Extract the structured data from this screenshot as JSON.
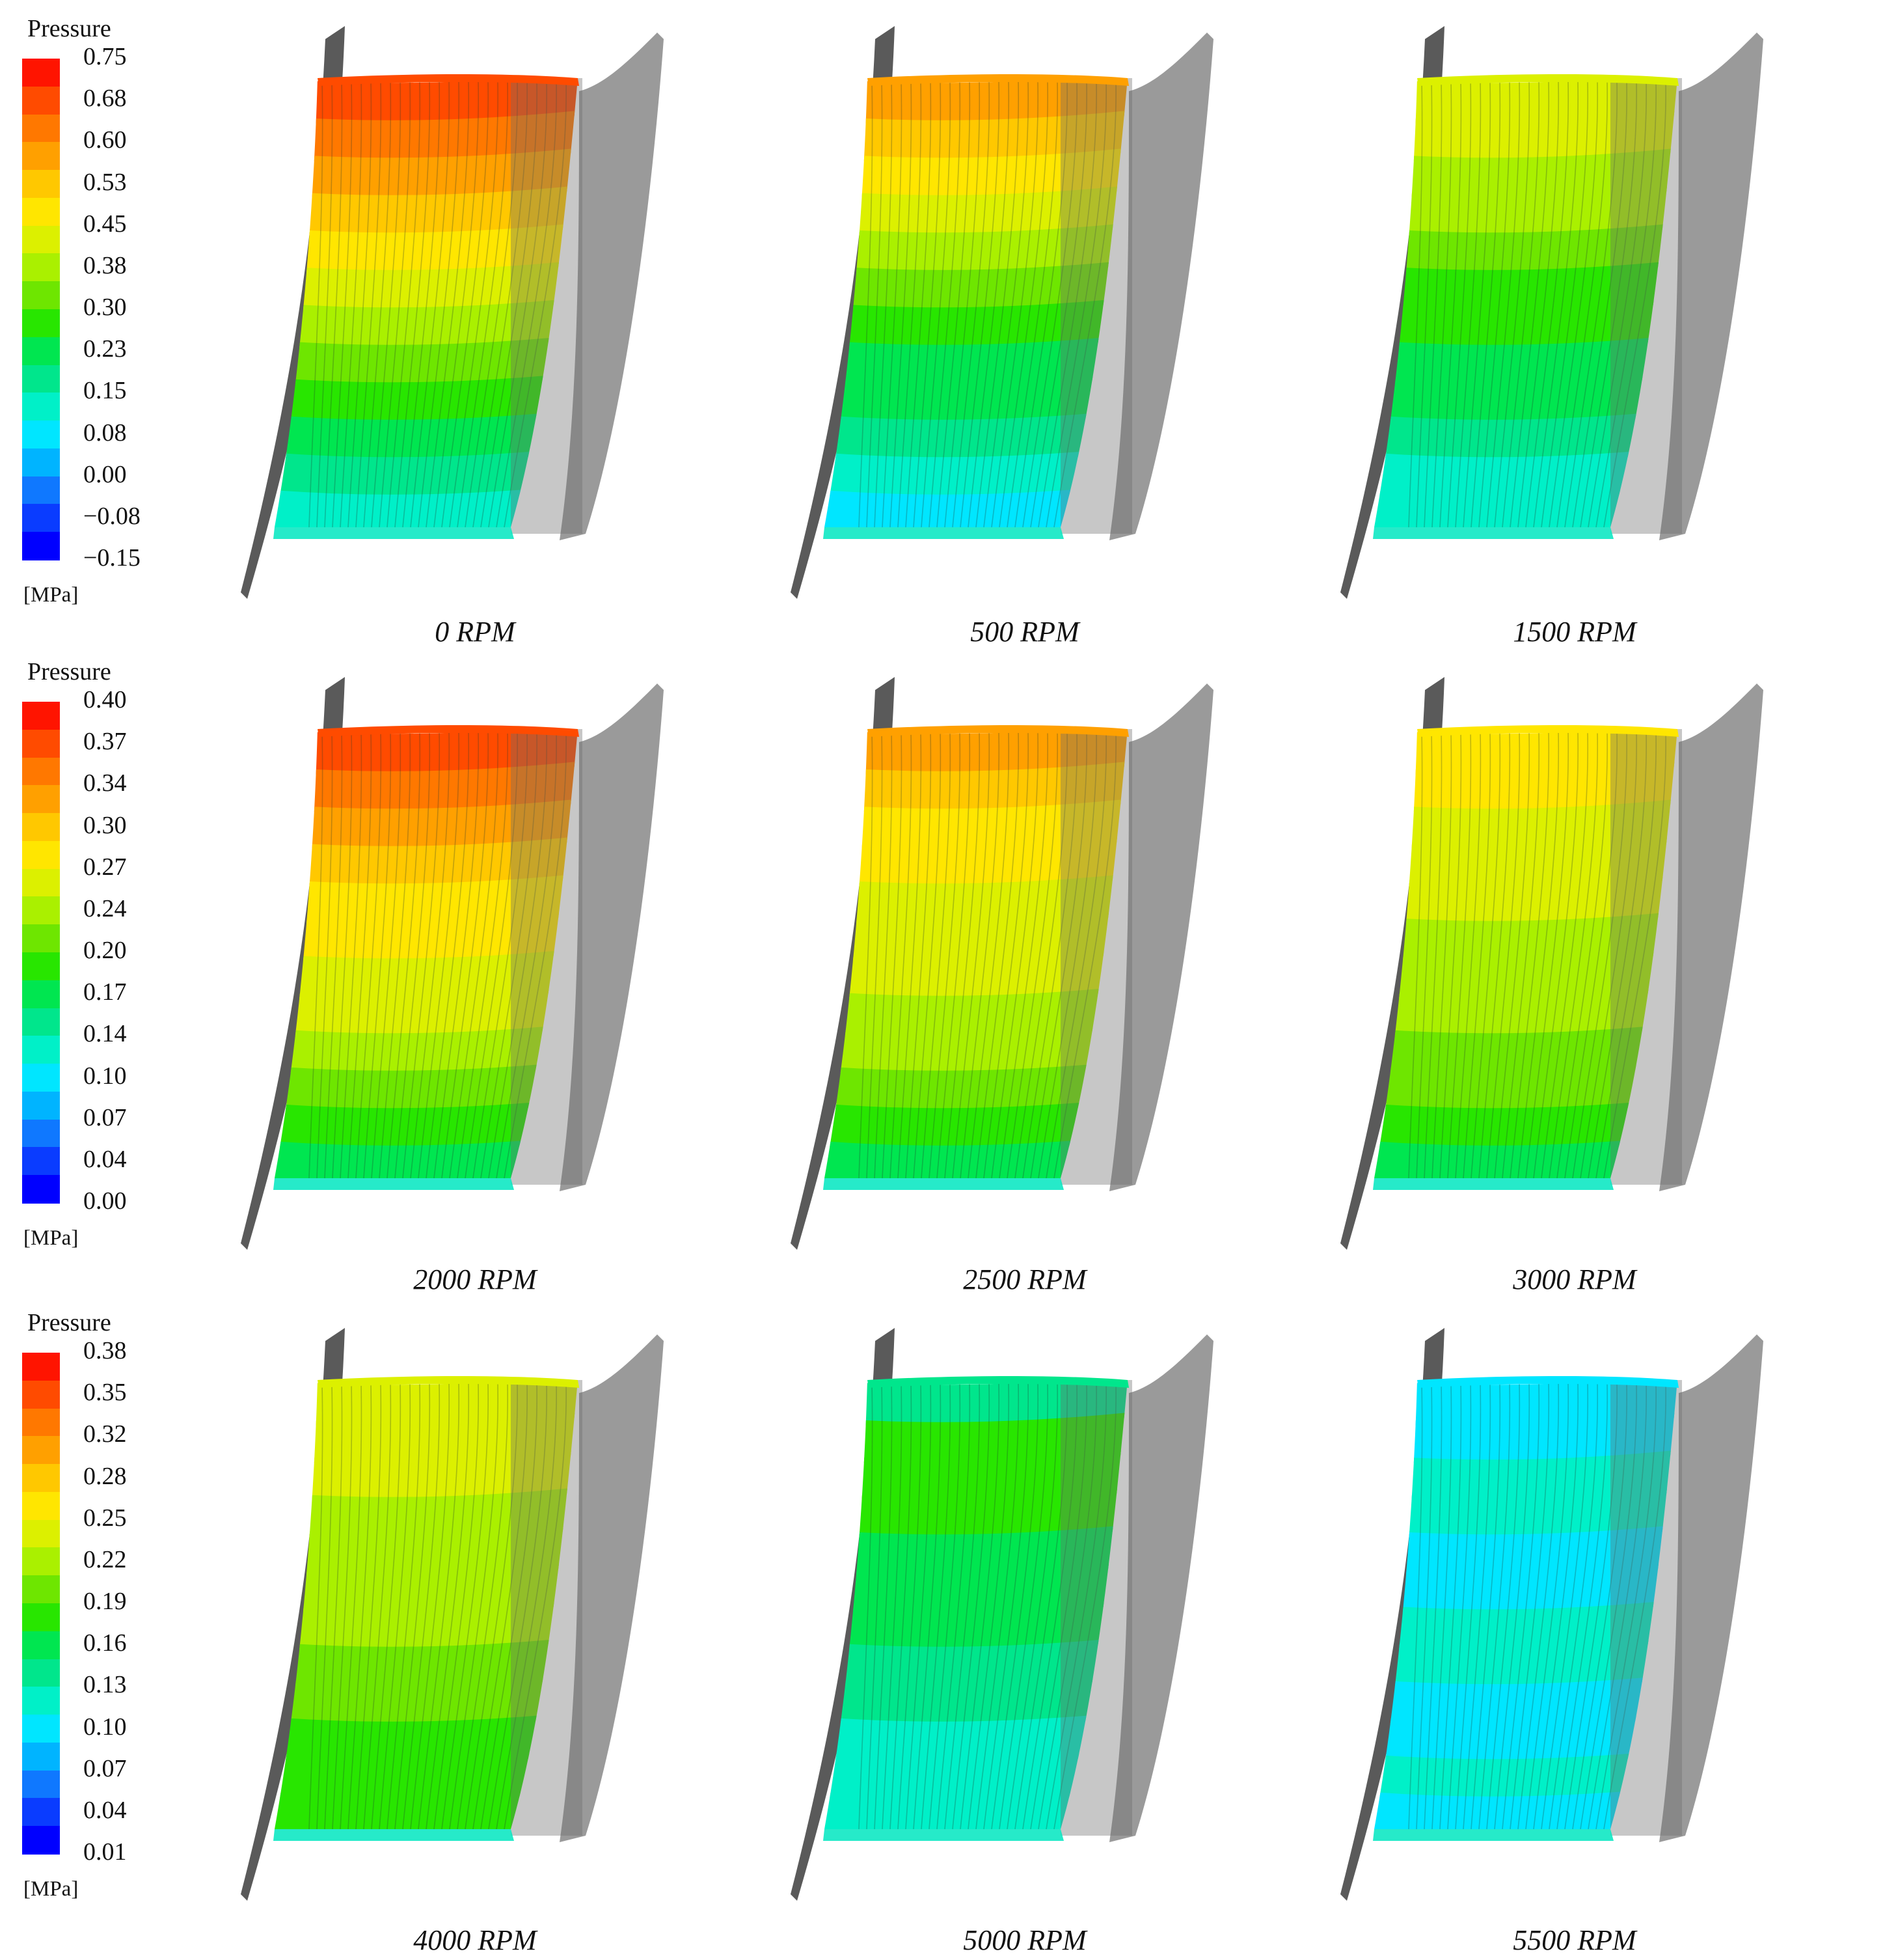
{
  "legends": [
    {
      "title": "Pressure",
      "unit": "[MPa]",
      "ticks": [
        "0.75",
        "0.68",
        "0.60",
        "0.53",
        "0.45",
        "0.38",
        "0.30",
        "0.23",
        "0.15",
        "0.08",
        "0.00",
        "−0.08",
        "−0.15"
      ]
    },
    {
      "title": "Pressure",
      "unit": "[MPa]",
      "ticks": [
        "0.40",
        "0.37",
        "0.34",
        "0.30",
        "0.27",
        "0.24",
        "0.20",
        "0.17",
        "0.14",
        "0.10",
        "0.07",
        "0.04",
        "0.00"
      ]
    },
    {
      "title": "Pressure",
      "unit": "[MPa]",
      "ticks": [
        "0.38",
        "0.35",
        "0.32",
        "0.28",
        "0.25",
        "0.22",
        "0.19",
        "0.16",
        "0.13",
        "0.10",
        "0.07",
        "0.04",
        "0.01"
      ]
    }
  ],
  "colormap": [
    "#0000ff",
    "#0a3cff",
    "#0f78ff",
    "#00b4ff",
    "#00e6ff",
    "#00f0c8",
    "#00e68c",
    "#00e650",
    "#28e600",
    "#6ee600",
    "#aaf000",
    "#dcf000",
    "#ffe600",
    "#ffc800",
    "#ffa000",
    "#ff7800",
    "#ff4b00",
    "#ff1400"
  ],
  "panels": [
    {
      "label": "0 RPM",
      "bands": [
        "#ff4b00",
        "#ff7800",
        "#ffa000",
        "#ffc800",
        "#ffe600",
        "#dcf000",
        "#aaf000",
        "#6ee600",
        "#28e600",
        "#00e650",
        "#00e68c",
        "#00f0c8"
      ]
    },
    {
      "label": "500 RPM",
      "bands": [
        "#ffa000",
        "#ffc800",
        "#ffe600",
        "#dcf000",
        "#aaf000",
        "#6ee600",
        "#28e600",
        "#00e650",
        "#00e650",
        "#00e68c",
        "#00f0c8",
        "#00e6ff"
      ]
    },
    {
      "label": "1500 RPM",
      "bands": [
        "#dcf000",
        "#dcf000",
        "#aaf000",
        "#aaf000",
        "#6ee600",
        "#28e600",
        "#28e600",
        "#00e650",
        "#00e650",
        "#00e68c",
        "#00f0c8",
        "#00f0c8"
      ]
    },
    {
      "label": "2000 RPM",
      "bands": [
        "#ff4b00",
        "#ff7800",
        "#ffa000",
        "#ffc800",
        "#ffe600",
        "#ffe600",
        "#dcf000",
        "#dcf000",
        "#aaf000",
        "#6ee600",
        "#28e600",
        "#00e650"
      ]
    },
    {
      "label": "2500 RPM",
      "bands": [
        "#ffa000",
        "#ffc800",
        "#ffe600",
        "#ffe600",
        "#dcf000",
        "#dcf000",
        "#dcf000",
        "#aaf000",
        "#aaf000",
        "#6ee600",
        "#28e600",
        "#00e650"
      ]
    },
    {
      "label": "3000 RPM",
      "bands": [
        "#ffe600",
        "#ffe600",
        "#dcf000",
        "#dcf000",
        "#dcf000",
        "#aaf000",
        "#aaf000",
        "#aaf000",
        "#6ee600",
        "#6ee600",
        "#28e600",
        "#00e650"
      ]
    },
    {
      "label": "4000 RPM",
      "bands": [
        "#dcf000",
        "#dcf000",
        "#dcf000",
        "#aaf000",
        "#aaf000",
        "#aaf000",
        "#aaf000",
        "#6ee600",
        "#6ee600",
        "#28e600",
        "#28e600",
        "#28e600"
      ]
    },
    {
      "label": "5000 RPM",
      "bands": [
        "#00e68c",
        "#28e600",
        "#28e600",
        "#28e600",
        "#00e650",
        "#00e650",
        "#00e650",
        "#00e68c",
        "#00e68c",
        "#00f0c8",
        "#00f0c8",
        "#00f0c8"
      ]
    },
    {
      "label": "5500 RPM",
      "bands": [
        "#00e6ff",
        "#00e6ff",
        "#00f0c8",
        "#00f0c8",
        "#00e6ff",
        "#00e6ff",
        "#00f0c8",
        "#00f0c8",
        "#00e6ff",
        "#00e6ff",
        "#00f0c8",
        "#00e6ff"
      ]
    }
  ]
}
